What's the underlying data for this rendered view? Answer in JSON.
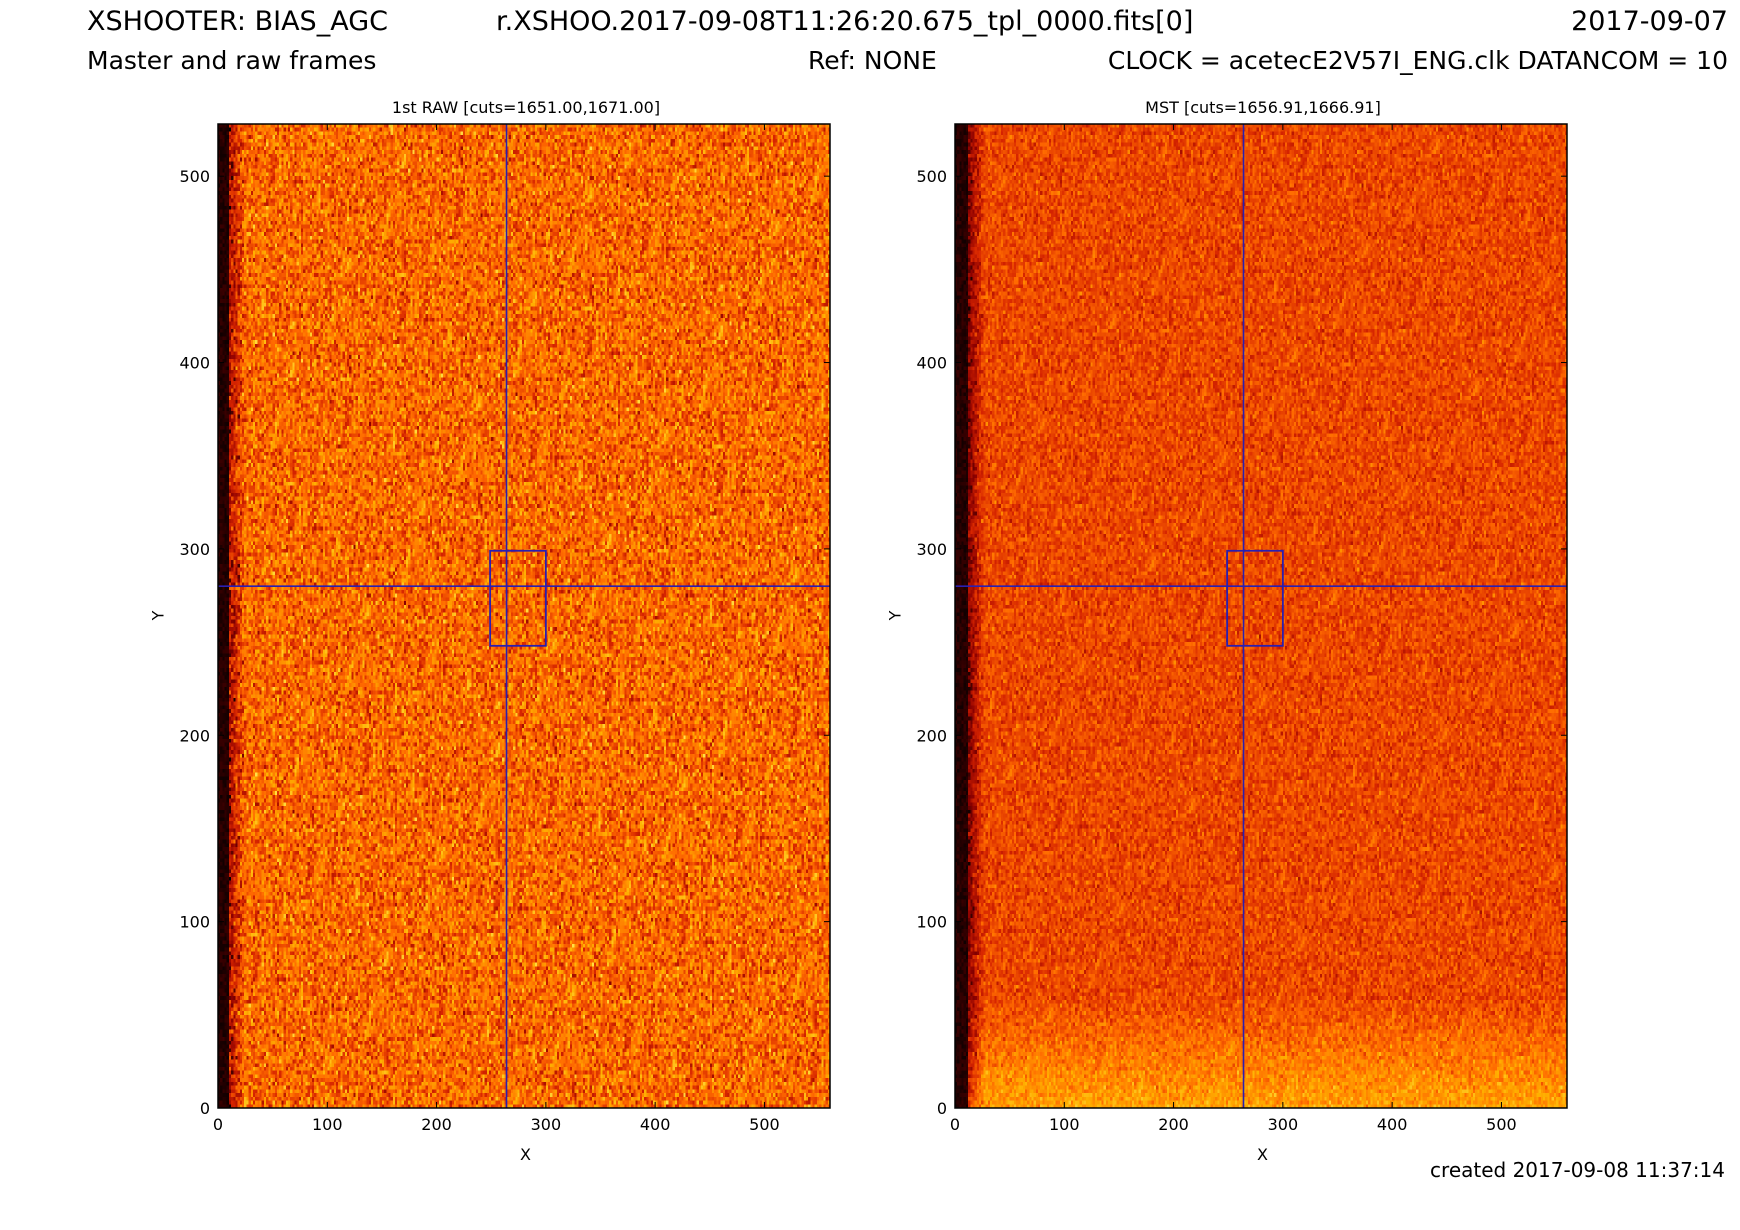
{
  "header": {
    "instrument": "XSHOOTER: BIAS_AGC",
    "filename": "r.XSHOO.2017-09-08T11:26:20.675_tpl_0000.fits[0]",
    "date": "2017-09-07",
    "subtitle": "Master and raw frames",
    "ref": "Ref: NONE",
    "clock": "CLOCK = acetecE2V57I_ENG.clk DATANCOM = 10"
  },
  "footer": {
    "created": "created 2017-09-08 11:37:14"
  },
  "colors": {
    "cmap": [
      "#000000",
      "#8b0000",
      "#d62400",
      "#ff6a00",
      "#ffb000",
      "#ffe44a",
      "#ffffb0"
    ],
    "overlay": "#2a1fb0"
  },
  "chart_data": [
    {
      "type": "heatmap",
      "title": "1st RAW [cuts=1651.00,1671.00]",
      "xlabel": "X",
      "ylabel": "Y",
      "xlim": [
        0,
        560
      ],
      "ylim": [
        0,
        528
      ],
      "xticks": [
        0,
        100,
        200,
        300,
        400,
        500
      ],
      "yticks": [
        0,
        100,
        200,
        300,
        400,
        500
      ],
      "cuts": [
        1651.0,
        1671.0
      ],
      "crosshair": {
        "x": 264,
        "y": 280
      },
      "box": {
        "x0": 249,
        "x1": 300,
        "y0": 248,
        "y1": 299
      },
      "dark_columns": [
        0,
        10
      ]
    },
    {
      "type": "heatmap",
      "title": "MST [cuts=1656.91,1666.91]",
      "xlabel": "X",
      "ylabel": "Y",
      "xlim": [
        0,
        560
      ],
      "ylim": [
        0,
        528
      ],
      "xticks": [
        0,
        100,
        200,
        300,
        400,
        500
      ],
      "yticks": [
        0,
        100,
        200,
        300,
        400,
        500
      ],
      "cuts": [
        1656.91,
        1666.91
      ],
      "crosshair": {
        "x": 264,
        "y": 280
      },
      "box": {
        "x0": 249,
        "x1": 300,
        "y0": 248,
        "y1": 299
      },
      "dark_columns": [
        0,
        12
      ]
    }
  ]
}
